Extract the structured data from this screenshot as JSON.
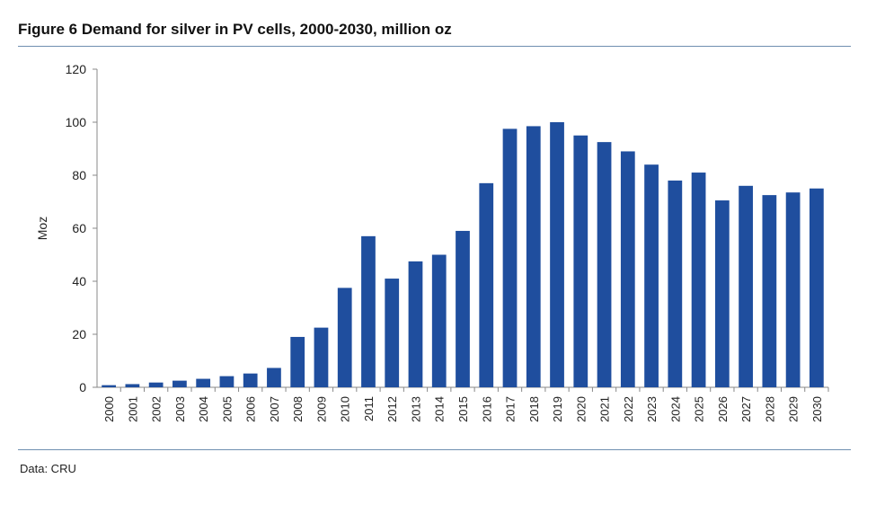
{
  "figure": {
    "title": "Figure 6  Demand for silver in PV cells, 2000-2030, million oz",
    "source": "Data: CRU"
  },
  "colors": {
    "bar": "#1f4e9e",
    "axis": "#888888",
    "rule": "#6f8fb0",
    "text": "#222222"
  },
  "chart_data": {
    "type": "bar",
    "title": "Demand for silver in PV cells, 2000-2030, million oz",
    "xlabel": "",
    "ylabel": "Moz",
    "ylim": [
      0,
      120
    ],
    "yticks": [
      0,
      20,
      40,
      60,
      80,
      100,
      120
    ],
    "grid": false,
    "categories": [
      "2000",
      "2001",
      "2002",
      "2003",
      "2004",
      "2005",
      "2006",
      "2007",
      "2008",
      "2009",
      "2010",
      "2011",
      "2012",
      "2013",
      "2014",
      "2015",
      "2016",
      "2017",
      "2018",
      "2019",
      "2020",
      "2021",
      "2022",
      "2023",
      "2024",
      "2025",
      "2026",
      "2027",
      "2028",
      "2029",
      "2030"
    ],
    "values": [
      0.8,
      1.2,
      1.8,
      2.5,
      3.2,
      4.2,
      5.2,
      7.3,
      19,
      22.5,
      37.5,
      57,
      41,
      47.5,
      50,
      59,
      77,
      97.5,
      98.5,
      100,
      95,
      92.5,
      89,
      84,
      78,
      81,
      70.5,
      76,
      72.5,
      73.5,
      75
    ]
  }
}
